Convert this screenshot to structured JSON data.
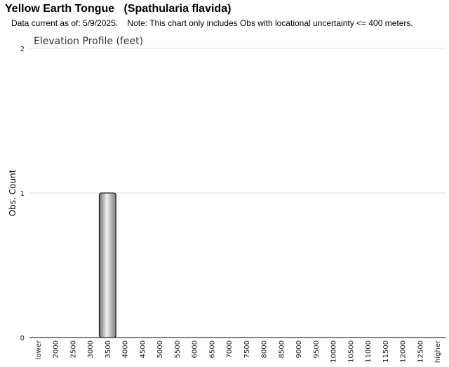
{
  "header": {
    "title": "Yellow Earth Tongue   (Spathularia flavida)",
    "note": "Data current as of: 5/9/2025.    Note: This chart only includes Obs with locational uncertainty <= 400 meters."
  },
  "chart_data": {
    "type": "bar",
    "title": "Elevation Profile (feet)",
    "xlabel": "",
    "ylabel": "Obs. Count",
    "categories": [
      "lower",
      "2000",
      "2500",
      "3000",
      "3500",
      "4000",
      "4500",
      "5000",
      "5500",
      "6000",
      "6500",
      "7000",
      "7500",
      "8000",
      "8500",
      "9000",
      "9500",
      "10000",
      "10500",
      "11000",
      "11500",
      "12000",
      "12500",
      "higher"
    ],
    "values": [
      0,
      0,
      0,
      0,
      1,
      0,
      0,
      0,
      0,
      0,
      0,
      0,
      0,
      0,
      0,
      0,
      0,
      0,
      0,
      0,
      0,
      0,
      0,
      0
    ],
    "ylim": [
      0,
      2
    ],
    "yticks": [
      0,
      1,
      2
    ],
    "grid": true,
    "bar_color": "#9a9a9a"
  }
}
